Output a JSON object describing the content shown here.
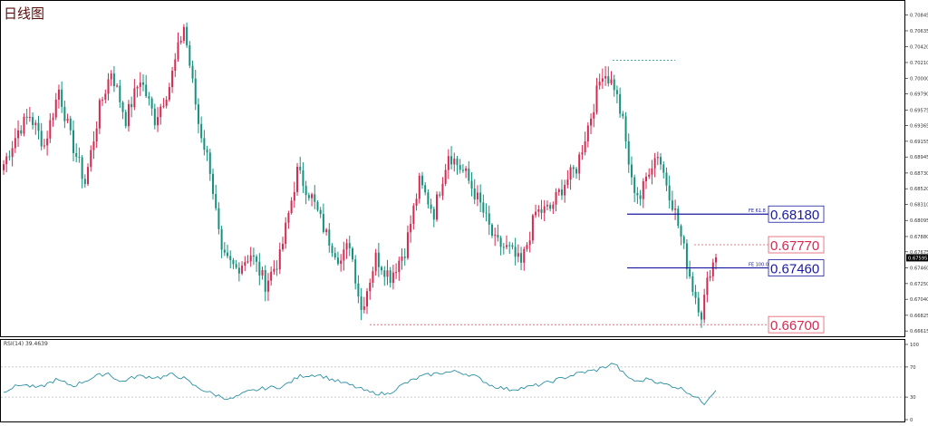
{
  "header": {
    "title": "日线图"
  },
  "colors": {
    "bull": "#d62850",
    "bear": "#17917e",
    "rsi": "#2a8fa3",
    "level_line": "#1a1aa0",
    "red_dash": "#e05a6a"
  },
  "chart_data": [
    {
      "type": "candlestick",
      "title": "日线图",
      "ylim": [
        0.66605,
        0.7095
      ],
      "y_ticks": [
        "0.70845",
        "0.70635",
        "0.70420",
        "0.70210",
        "0.70000",
        "0.69790",
        "0.69575",
        "0.69365",
        "0.69155",
        "0.68945",
        "0.68730",
        "0.68520",
        "0.68310",
        "0.68095",
        "0.67880",
        "0.67675",
        "0.67460",
        "0.67250",
        "0.67040",
        "0.66825",
        "0.66615"
      ],
      "current_price": "0.67595",
      "levels": [
        {
          "name": "FE 61.8",
          "value": "0.68180",
          "value_num": 0.6818,
          "style": "blue"
        },
        {
          "name": "",
          "value": "0.67770",
          "value_num": 0.6777,
          "style": "red"
        },
        {
          "name": "FE 100.0",
          "value": "0.67460",
          "value_num": 0.6746,
          "style": "blue"
        },
        {
          "name": "",
          "value": "0.66700",
          "value_num": 0.667,
          "style": "red"
        }
      ],
      "top_level": 0.7024,
      "anchors": [
        {
          "i": 0,
          "p": 0.6885
        },
        {
          "i": 5,
          "p": 0.693
        },
        {
          "i": 9,
          "p": 0.695
        },
        {
          "i": 14,
          "p": 0.691
        },
        {
          "i": 19,
          "p": 0.6985
        },
        {
          "i": 23,
          "p": 0.692
        },
        {
          "i": 28,
          "p": 0.686
        },
        {
          "i": 33,
          "p": 0.696
        },
        {
          "i": 37,
          "p": 0.701
        },
        {
          "i": 42,
          "p": 0.6945
        },
        {
          "i": 47,
          "p": 0.7
        },
        {
          "i": 52,
          "p": 0.6945
        },
        {
          "i": 57,
          "p": 0.699
        },
        {
          "i": 62,
          "p": 0.707
        },
        {
          "i": 67,
          "p": 0.694
        },
        {
          "i": 71,
          "p": 0.688
        },
        {
          "i": 75,
          "p": 0.676
        },
        {
          "i": 80,
          "p": 0.6745
        },
        {
          "i": 85,
          "p": 0.6765
        },
        {
          "i": 90,
          "p": 0.6725
        },
        {
          "i": 95,
          "p": 0.676
        },
        {
          "i": 101,
          "p": 0.6875
        },
        {
          "i": 106,
          "p": 0.684
        },
        {
          "i": 111,
          "p": 0.679
        },
        {
          "i": 116,
          "p": 0.6755
        },
        {
          "i": 119,
          "p": 0.678
        },
        {
          "i": 123,
          "p": 0.669
        },
        {
          "i": 128,
          "p": 0.676
        },
        {
          "i": 133,
          "p": 0.6735
        },
        {
          "i": 138,
          "p": 0.677
        },
        {
          "i": 143,
          "p": 0.686
        },
        {
          "i": 148,
          "p": 0.682
        },
        {
          "i": 153,
          "p": 0.69
        },
        {
          "i": 159,
          "p": 0.687
        },
        {
          "i": 164,
          "p": 0.683
        },
        {
          "i": 169,
          "p": 0.678
        },
        {
          "i": 174,
          "p": 0.677
        },
        {
          "i": 178,
          "p": 0.675
        },
        {
          "i": 183,
          "p": 0.682
        },
        {
          "i": 188,
          "p": 0.6825
        },
        {
          "i": 193,
          "p": 0.686
        },
        {
          "i": 197,
          "p": 0.688
        },
        {
          "i": 202,
          "p": 0.695
        },
        {
          "i": 206,
          "p": 0.701
        },
        {
          "i": 210,
          "p": 0.699
        },
        {
          "i": 213,
          "p": 0.694
        },
        {
          "i": 216,
          "p": 0.686
        },
        {
          "i": 219,
          "p": 0.684
        },
        {
          "i": 222,
          "p": 0.688
        },
        {
          "i": 225,
          "p": 0.69
        },
        {
          "i": 228,
          "p": 0.686
        },
        {
          "i": 231,
          "p": 0.682
        },
        {
          "i": 234,
          "p": 0.677
        },
        {
          "i": 237,
          "p": 0.672
        },
        {
          "i": 240,
          "p": 0.6685
        },
        {
          "i": 243,
          "p": 0.6745
        },
        {
          "i": 245,
          "p": 0.676
        }
      ]
    },
    {
      "type": "line",
      "title": "RSI(14) 39.4639",
      "ylim": [
        0,
        100
      ],
      "y_ticks": [
        "100",
        "70",
        "30",
        "0"
      ],
      "levels": [
        70,
        30
      ],
      "anchors": [
        {
          "i": 0,
          "v": 38
        },
        {
          "i": 6,
          "v": 47
        },
        {
          "i": 12,
          "v": 42
        },
        {
          "i": 18,
          "v": 53
        },
        {
          "i": 24,
          "v": 45
        },
        {
          "i": 32,
          "v": 58
        },
        {
          "i": 36,
          "v": 62
        },
        {
          "i": 40,
          "v": 50
        },
        {
          "i": 46,
          "v": 58
        },
        {
          "i": 50,
          "v": 57
        },
        {
          "i": 54,
          "v": 56
        },
        {
          "i": 58,
          "v": 60
        },
        {
          "i": 62,
          "v": 55
        },
        {
          "i": 66,
          "v": 44
        },
        {
          "i": 72,
          "v": 34
        },
        {
          "i": 78,
          "v": 27
        },
        {
          "i": 84,
          "v": 37
        },
        {
          "i": 90,
          "v": 42
        },
        {
          "i": 96,
          "v": 44
        },
        {
          "i": 102,
          "v": 58
        },
        {
          "i": 108,
          "v": 60
        },
        {
          "i": 114,
          "v": 52
        },
        {
          "i": 120,
          "v": 45
        },
        {
          "i": 126,
          "v": 36
        },
        {
          "i": 132,
          "v": 34
        },
        {
          "i": 138,
          "v": 48
        },
        {
          "i": 144,
          "v": 58
        },
        {
          "i": 150,
          "v": 62
        },
        {
          "i": 156,
          "v": 64
        },
        {
          "i": 162,
          "v": 58
        },
        {
          "i": 168,
          "v": 45
        },
        {
          "i": 174,
          "v": 40
        },
        {
          "i": 180,
          "v": 43
        },
        {
          "i": 186,
          "v": 48
        },
        {
          "i": 192,
          "v": 55
        },
        {
          "i": 198,
          "v": 62
        },
        {
          "i": 204,
          "v": 66
        },
        {
          "i": 210,
          "v": 75
        },
        {
          "i": 214,
          "v": 58
        },
        {
          "i": 218,
          "v": 50
        },
        {
          "i": 222,
          "v": 55
        },
        {
          "i": 226,
          "v": 48
        },
        {
          "i": 230,
          "v": 45
        },
        {
          "i": 234,
          "v": 40
        },
        {
          "i": 238,
          "v": 30
        },
        {
          "i": 241,
          "v": 22
        },
        {
          "i": 243,
          "v": 32
        },
        {
          "i": 245,
          "v": 39
        }
      ]
    }
  ]
}
